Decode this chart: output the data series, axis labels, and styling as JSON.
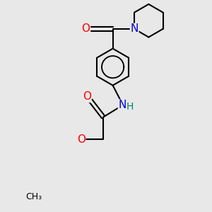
{
  "background_color": "#e8e8e8",
  "bond_color": "#000000",
  "bond_width": 1.5,
  "atom_colors": {
    "O": "#ff0000",
    "N": "#0000cd",
    "H": "#008080",
    "C": "#000000"
  },
  "font_size": 10,
  "figsize": [
    3.0,
    3.0
  ],
  "dpi": 100
}
